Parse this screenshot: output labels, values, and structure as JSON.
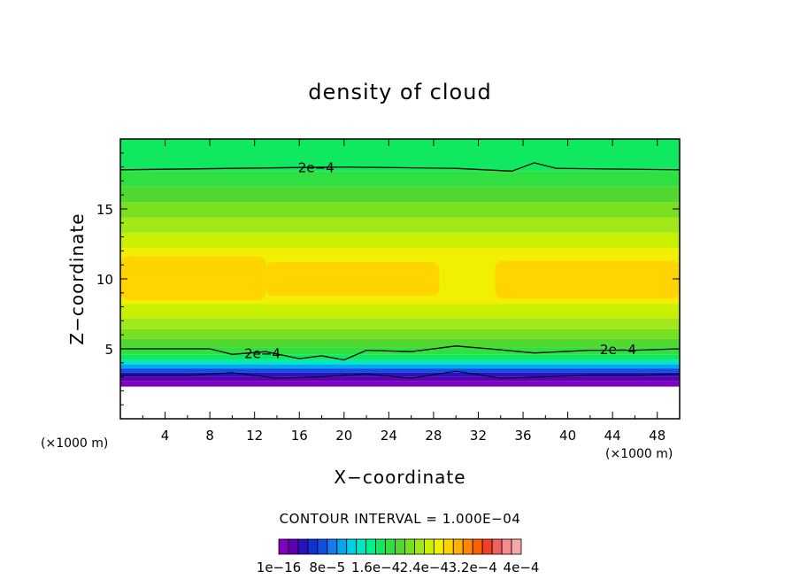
{
  "chart_data": {
    "type": "heatmap",
    "title": "density of cloud",
    "xlabel": "X−coordinate",
    "ylabel": "Z−coordinate",
    "x_unit_left": "(×1000 m)",
    "x_unit_right": "(×1000 m)",
    "xlim": [
      0,
      50
    ],
    "ylim": [
      0,
      20
    ],
    "x_ticks": [
      4,
      8,
      12,
      16,
      20,
      24,
      28,
      32,
      36,
      40,
      44,
      48
    ],
    "y_ticks": [
      5,
      10,
      15
    ],
    "contour_interval_text": "CONTOUR INTERVAL = 1.000E−04",
    "contour_labels": [
      {
        "text": "2e−4",
        "x": 17.5,
        "z": 18.0
      },
      {
        "text": "2e−4",
        "x": 12.7,
        "z": 4.7
      },
      {
        "text": "2e−4",
        "x": 44.5,
        "z": 5.0
      }
    ],
    "colorbar": {
      "colors": [
        "#7f00bf",
        "#5a00b0",
        "#2a10c0",
        "#1030d0",
        "#1050e0",
        "#1a78f0",
        "#00a8f0",
        "#00d0e8",
        "#00e8c0",
        "#00f090",
        "#10e860",
        "#30e040",
        "#50d830",
        "#78e020",
        "#a0e818",
        "#c8f000",
        "#f0f000",
        "#ffd400",
        "#ffb000",
        "#ff8800",
        "#ff6000",
        "#f04028",
        "#f06060",
        "#f88a8a",
        "#f8a8a8"
      ],
      "tick_labels": [
        "1e−16",
        "8e−5",
        "1.6e−4",
        "2.4e−4",
        "3.2e−4",
        "4e−4"
      ]
    },
    "vertical_profile": [
      {
        "z_min": 0.0,
        "z_max": 2.3,
        "color": "#ffffff"
      },
      {
        "z_min": 2.3,
        "z_max": 2.7,
        "color": "#7f00bf"
      },
      {
        "z_min": 2.7,
        "z_max": 3.0,
        "color": "#5a00b0"
      },
      {
        "z_min": 3.0,
        "z_max": 3.3,
        "color": "#2a10c0"
      },
      {
        "z_min": 3.3,
        "z_max": 3.6,
        "color": "#1050e0"
      },
      {
        "z_min": 3.6,
        "z_max": 3.9,
        "color": "#00a8f0"
      },
      {
        "z_min": 3.9,
        "z_max": 4.2,
        "color": "#00e8c0"
      },
      {
        "z_min": 4.2,
        "z_max": 4.6,
        "color": "#10e860"
      },
      {
        "z_min": 4.6,
        "z_max": 5.1,
        "color": "#30e040"
      },
      {
        "z_min": 5.1,
        "z_max": 5.7,
        "color": "#50d830"
      },
      {
        "z_min": 5.7,
        "z_max": 6.4,
        "color": "#78e020"
      },
      {
        "z_min": 6.4,
        "z_max": 7.2,
        "color": "#a0e818"
      },
      {
        "z_min": 7.2,
        "z_max": 8.2,
        "color": "#c8f000"
      },
      {
        "z_min": 8.2,
        "z_max": 12.2,
        "color": "#f0f000"
      },
      {
        "z_min": 12.2,
        "z_max": 13.3,
        "color": "#c8f000"
      },
      {
        "z_min": 13.3,
        "z_max": 14.4,
        "color": "#a0e818"
      },
      {
        "z_min": 14.4,
        "z_max": 15.5,
        "color": "#78e020"
      },
      {
        "z_min": 15.5,
        "z_max": 16.6,
        "color": "#50d830"
      },
      {
        "z_min": 16.6,
        "z_max": 17.7,
        "color": "#30e040"
      },
      {
        "z_min": 17.7,
        "z_max": 20.0,
        "color": "#10e860"
      }
    ],
    "orange_regions": [
      {
        "x_min": 0,
        "x_max": 13,
        "z_min": 8.5,
        "z_max": 11.6,
        "color": "#ffd400"
      },
      {
        "x_min": 13,
        "x_max": 28.5,
        "z_min": 8.8,
        "z_max": 11.2,
        "color": "#ffd400"
      },
      {
        "x_min": 33.5,
        "x_max": 50,
        "z_min": 8.6,
        "z_max": 11.3,
        "color": "#ffd400"
      }
    ],
    "contour_upper": [
      [
        0,
        17.8
      ],
      [
        10,
        17.9
      ],
      [
        20,
        18.0
      ],
      [
        30,
        17.9
      ],
      [
        35,
        17.7
      ],
      [
        37,
        18.3
      ],
      [
        39,
        17.9
      ],
      [
        50,
        17.8
      ]
    ],
    "contour_lower": [
      [
        0,
        5.0
      ],
      [
        8,
        5.0
      ],
      [
        10,
        4.6
      ],
      [
        13,
        4.8
      ],
      [
        16,
        4.3
      ],
      [
        18,
        4.5
      ],
      [
        20,
        4.2
      ],
      [
        22,
        4.9
      ],
      [
        26,
        4.8
      ],
      [
        30,
        5.2
      ],
      [
        33,
        5.0
      ],
      [
        37,
        4.7
      ],
      [
        42,
        4.9
      ],
      [
        46,
        4.9
      ],
      [
        50,
        5.0
      ]
    ],
    "contour_bottom": [
      [
        0,
        3.1
      ],
      [
        6,
        3.1
      ],
      [
        10,
        3.3
      ],
      [
        14,
        2.9
      ],
      [
        18,
        3.0
      ],
      [
        22,
        3.2
      ],
      [
        26,
        2.9
      ],
      [
        30,
        3.4
      ],
      [
        34,
        2.9
      ],
      [
        38,
        3.0
      ],
      [
        42,
        3.1
      ],
      [
        46,
        3.1
      ],
      [
        50,
        3.2
      ]
    ]
  }
}
